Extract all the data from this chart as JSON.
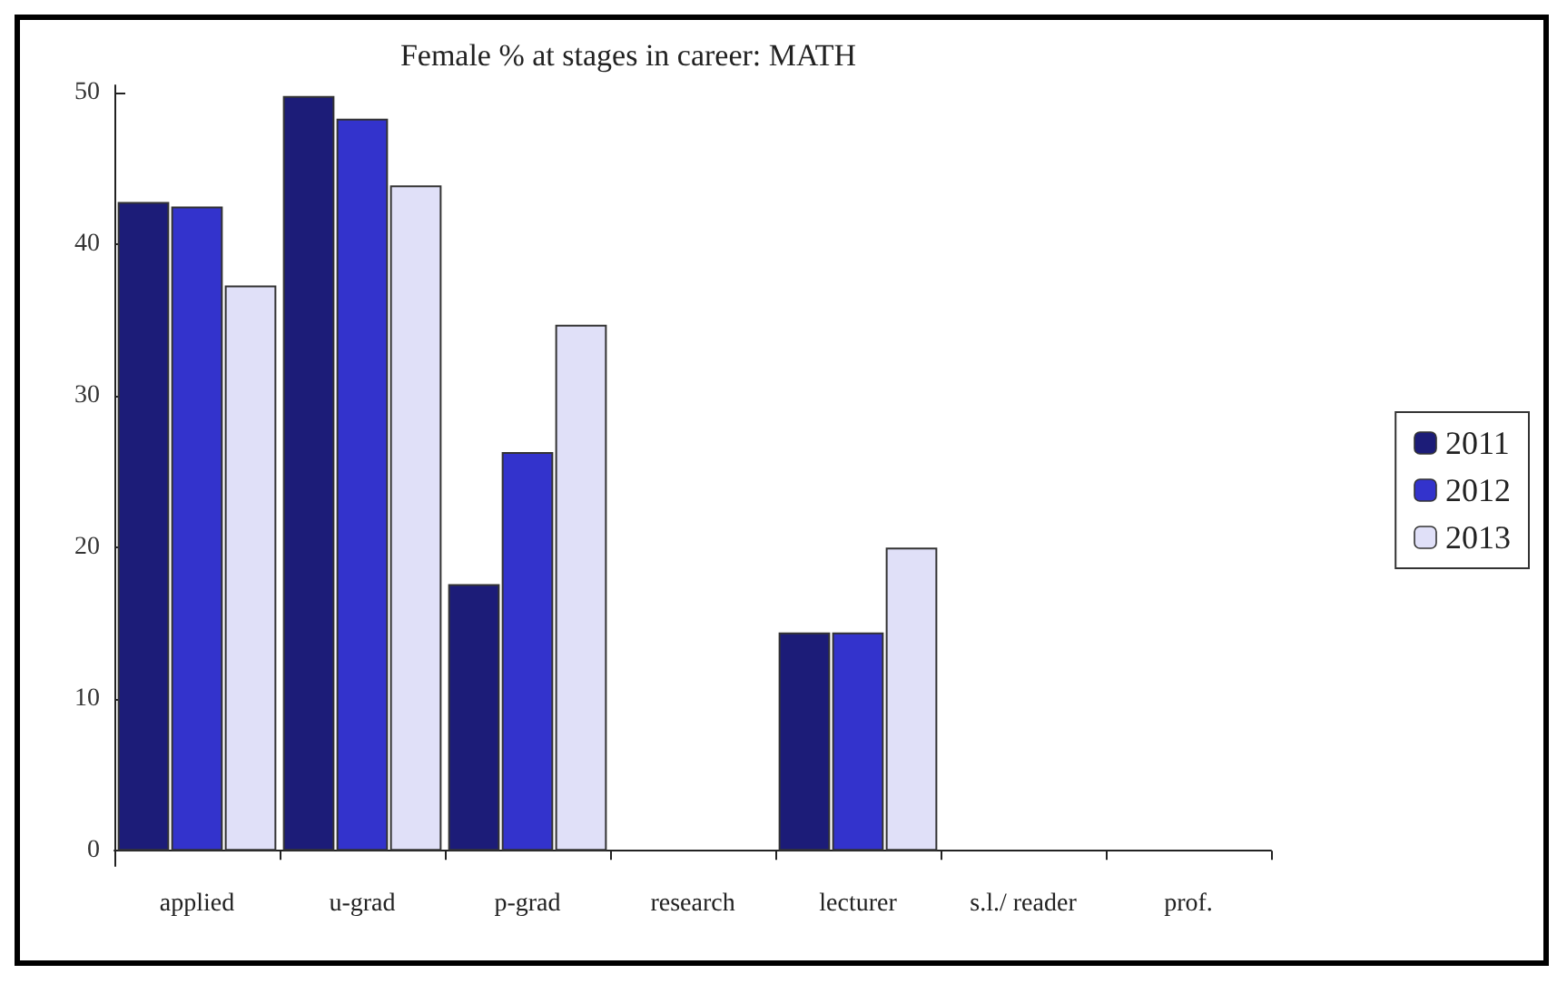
{
  "chart_data": {
    "type": "bar",
    "title": "Female % at stages in career: MATH",
    "categories": [
      "applied",
      "u-grad",
      "p-grad",
      "research",
      "lecturer",
      "s.l./ reader",
      "prof."
    ],
    "series": [
      {
        "name": "2011",
        "color": "#1c1c78",
        "values": [
          42.8,
          49.8,
          17.6,
          null,
          14.4,
          null,
          null
        ]
      },
      {
        "name": "2012",
        "color": "#3333cc",
        "values": [
          42.5,
          48.3,
          26.3,
          null,
          14.4,
          null,
          null
        ]
      },
      {
        "name": "2013",
        "color": "#e0e0f8",
        "values": [
          37.3,
          43.9,
          34.7,
          null,
          20.0,
          null,
          null
        ]
      }
    ],
    "ylim": [
      -1,
      50.5
    ],
    "yticks": [
      0,
      10,
      20,
      30,
      40,
      50
    ],
    "grid": false,
    "legend": "right"
  }
}
